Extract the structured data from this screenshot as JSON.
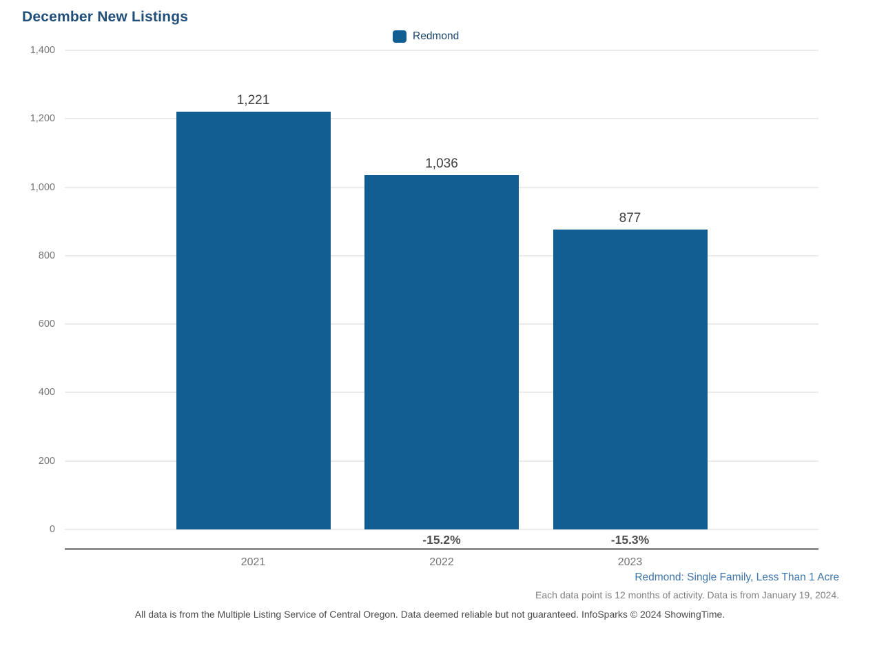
{
  "title": "December New Listings",
  "legend": {
    "label": "Redmond"
  },
  "chart_data": {
    "type": "bar",
    "title": "December New Listings",
    "categories": [
      "2021",
      "2022",
      "2023"
    ],
    "series": [
      {
        "name": "Redmond",
        "color": "#115f92",
        "values": [
          1221,
          1036,
          877
        ]
      }
    ],
    "value_labels": [
      "1,221",
      "1,036",
      "877"
    ],
    "pct_change_labels": [
      "",
      "-15.2%",
      "-15.3%"
    ],
    "xlabel": "",
    "ylabel": "",
    "ylim": [
      0,
      1400
    ],
    "ytick_step": 200,
    "ytick_labels": [
      "0",
      "200",
      "400",
      "600",
      "800",
      "1,000",
      "1,200",
      "1,400"
    ],
    "grid": true,
    "legend_position": "top-center"
  },
  "footer": {
    "filter_label": "Redmond: Single Family, Less Than 1 Acre",
    "data_note": "Each data point is 12 months of activity. Data is from January 19, 2024.",
    "disclaimer": "All data is from the Multiple Listing Service of Central Oregon. Data deemed reliable but not guaranteed. InfoSparks © 2024 ShowingTime."
  },
  "colors": {
    "bar": "#115f92",
    "title_text": "#224f79",
    "legend_text": "#1a4569",
    "filter_text": "#3e74a8",
    "axis_text": "#757575",
    "value_text": "#3f3f3f",
    "pct_text": "#4f4f4f",
    "gridline": "#ebebeb",
    "axis_line": "#8c8c8c"
  }
}
